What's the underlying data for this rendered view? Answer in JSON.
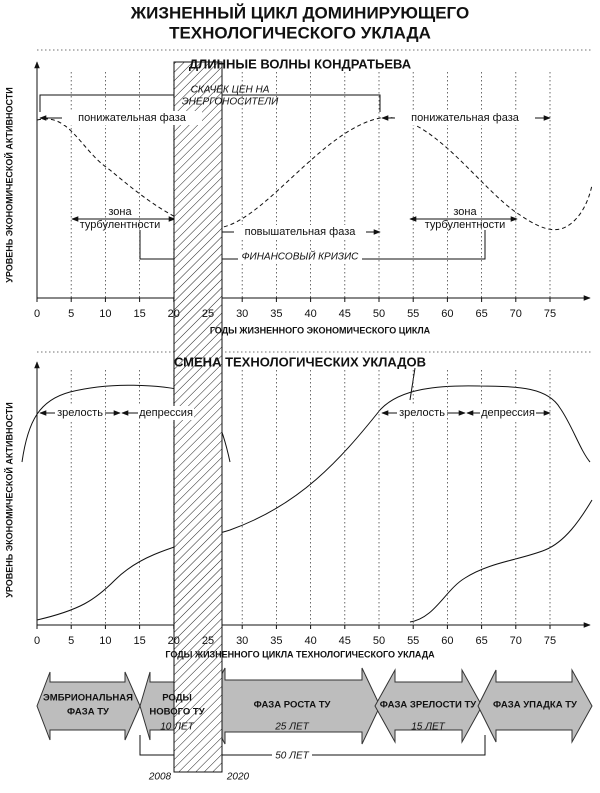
{
  "title": {
    "line1": "ЖИЗНЕННЫЙ ЦИКЛ ДОМИНИРУЮЩЕГО",
    "line2": "ТЕХНОЛОГИЧЕСКОГО УКЛАДА"
  },
  "top_panel": {
    "title": "ДЛИННЫЕ ВОЛНЫ КОНДРАТЬЕВА",
    "y_axis_label": "УРОВЕНЬ ЭКОНОМИЧЕСКОЙ АКТИВНОСТИ",
    "x_axis_label": "ГОДЫ ЖИЗНЕННОГО ЭКОНОМИЧЕСКОГО ЦИКЛА",
    "x_ticks": [
      0,
      5,
      10,
      15,
      20,
      25,
      30,
      35,
      40,
      45,
      50,
      55,
      60,
      65,
      70,
      75
    ],
    "price_shock": [
      "СКАЧЕК ЦЕН НА",
      "ЭНЕРГОНОСИТЕЛИ"
    ],
    "downward_phase_1": "понижательная фаза",
    "downward_phase_2": "понижательная фаза",
    "upward_phase": "повышательная фаза",
    "turbulence_1": [
      "зона",
      "турбулентности"
    ],
    "turbulence_2": [
      "зона",
      "турбулентности"
    ],
    "financial_crisis": "ФИНАНСОВЫЙ КРИЗИС"
  },
  "bottom_panel": {
    "title": "СМЕНА ТЕХНОЛОГИЧЕСКИХ УКЛАДОВ",
    "y_axis_label": "УРОВЕНЬ ЭКОНОМИЧЕСКОЙ АКТИВНОСТИ",
    "x_axis_label": "ГОДЫ ЖИЗНЕННОГО ЦИКЛА ТЕХНОЛОГИЧЕСКОГО УКЛАДА",
    "x_ticks": [
      0,
      5,
      10,
      15,
      20,
      25,
      30,
      35,
      40,
      45,
      50,
      55,
      60,
      65,
      70,
      75
    ],
    "maturity_1": "зрелость",
    "depression_1": "депрессия",
    "maturity_2": "зрелость",
    "depression_2": "депрессия"
  },
  "phases": [
    {
      "label": [
        "ЭМБРИОНАЛЬНАЯ",
        "ФАЗА ТУ"
      ]
    },
    {
      "label": [
        "РОДЫ",
        "НОВОГО ТУ"
      ],
      "duration": "10 ЛЕТ"
    },
    {
      "label": [
        "ФАЗА РОСТА ТУ"
      ],
      "duration": "25 ЛЕТ"
    },
    {
      "label": [
        "ФАЗА ЗРЕЛОСТИ ТУ"
      ],
      "duration": "15 ЛЕТ"
    },
    {
      "label": [
        "ФАЗА УПАДКА ТУ"
      ]
    }
  ],
  "total_duration": "50 ЛЕТ",
  "start_year": "2008",
  "end_year": "2020"
}
